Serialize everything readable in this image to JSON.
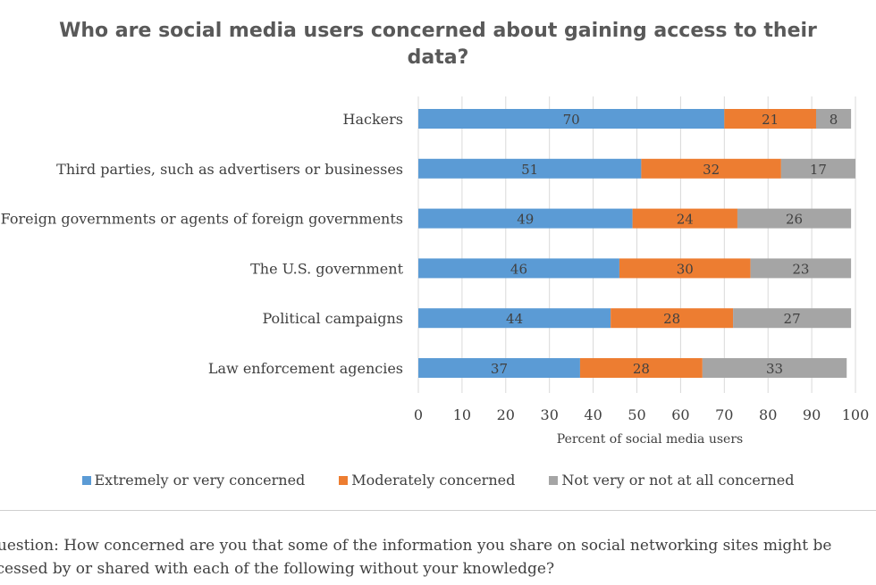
{
  "chart_data": {
    "type": "bar",
    "orientation": "horizontal",
    "stacked": true,
    "title": "Who are social media users concerned about gaining access to their data?",
    "xlabel": "Percent of social media users",
    "ylabel": "",
    "xlim": [
      0,
      100
    ],
    "xticks": [
      0,
      10,
      20,
      30,
      40,
      50,
      60,
      70,
      80,
      90,
      100
    ],
    "grid": "vertical",
    "legend_position": "bottom",
    "categories": [
      "Hackers",
      "Third parties, such as advertisers or businesses",
      "Foreign governments or agents of foreign governments",
      "The U.S. government",
      "Political campaigns",
      "Law enforcement agencies"
    ],
    "series": [
      {
        "name": "Extremely or very concerned",
        "color": "#5b9bd5",
        "values": [
          70,
          51,
          49,
          46,
          44,
          37
        ]
      },
      {
        "name": "Moderately concerned",
        "color": "#ed7d31",
        "values": [
          21,
          32,
          24,
          30,
          28,
          28
        ]
      },
      {
        "name": "Not very or not at all concerned",
        "color": "#a5a5a5",
        "values": [
          8,
          17,
          26,
          23,
          27,
          33
        ]
      }
    ]
  },
  "footnote": {
    "line1": "question: How concerned are you that some of the information you share on social networking sites might be",
    "line2": "ccessed by or shared with each of the following without your knowledge?"
  }
}
